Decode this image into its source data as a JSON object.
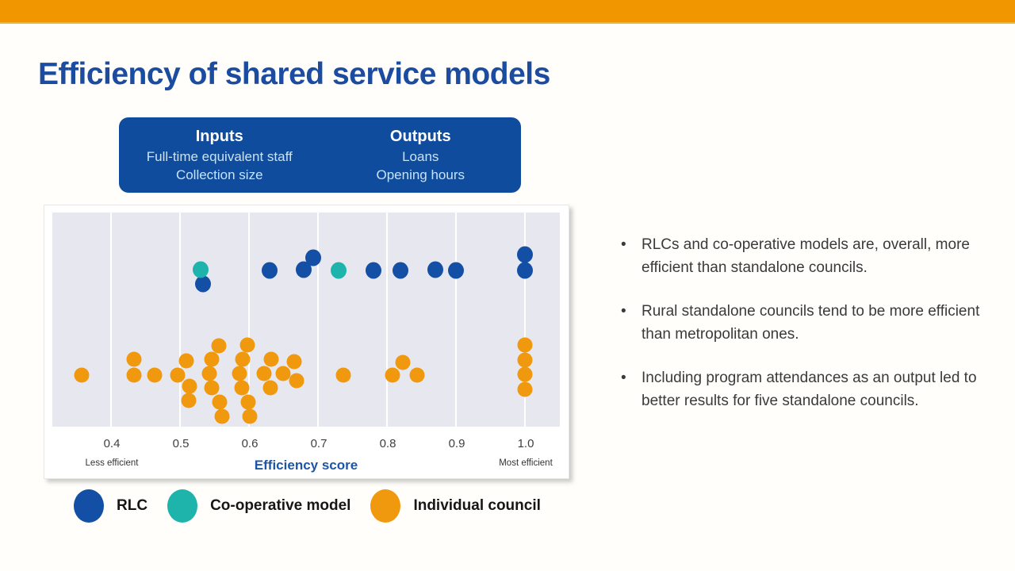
{
  "slide": {
    "title": "Efficiency of shared service models"
  },
  "glyphs": {
    "bullet": "•"
  },
  "colors": {
    "accent_orange": "#F29600",
    "brand_blue": "#1B4CA0",
    "box_blue": "#0F4C9E",
    "plot_bg": "#E7E7EF",
    "axis_blue": "#1D55A8"
  },
  "info_box": {
    "columns": [
      {
        "heading": "Inputs",
        "items": [
          "Full-time equivalent staff",
          "Collection size"
        ]
      },
      {
        "heading": "Outputs",
        "items": [
          "Loans",
          "Opening hours"
        ]
      }
    ]
  },
  "chart_data": {
    "type": "scatter",
    "title": "",
    "xlabel": "Efficiency score",
    "x_ticks": [
      0.4,
      0.5,
      0.6,
      0.7,
      0.8,
      0.9,
      1.0
    ],
    "x_range": [
      0.315,
      1.05
    ],
    "grid": "vertical-white-gridlines",
    "legend_position": "bottom",
    "axis_annotations": {
      "left": "Less efficient",
      "right": "Most efficient"
    },
    "series": [
      {
        "name": "RLC",
        "color": "#134FA5",
        "points": [
          {
            "score": 0.533,
            "y": 90
          },
          {
            "score": 0.63,
            "y": 73
          },
          {
            "score": 0.679,
            "y": 72
          },
          {
            "score": 0.693,
            "y": 57
          },
          {
            "score": 0.78,
            "y": 73
          },
          {
            "score": 0.82,
            "y": 73
          },
          {
            "score": 0.87,
            "y": 72
          },
          {
            "score": 0.9,
            "y": 73
          },
          {
            "score": 1.0,
            "y": 53
          },
          {
            "score": 1.0,
            "y": 73
          }
        ]
      },
      {
        "name": "Co-operative model",
        "color": "#1EB4AB",
        "points": [
          {
            "score": 0.53,
            "y": 72
          },
          {
            "score": 0.73,
            "y": 73
          }
        ]
      },
      {
        "name": "Individual council",
        "color": "#F0990F",
        "points": [
          {
            "score": 0.357,
            "y": 205
          },
          {
            "score": 0.433,
            "y": 185
          },
          {
            "score": 0.433,
            "y": 205
          },
          {
            "score": 0.463,
            "y": 205
          },
          {
            "score": 0.497,
            "y": 205
          },
          {
            "score": 0.509,
            "y": 187
          },
          {
            "score": 0.514,
            "y": 219
          },
          {
            "score": 0.513,
            "y": 237
          },
          {
            "score": 0.556,
            "y": 168
          },
          {
            "score": 0.546,
            "y": 185
          },
          {
            "score": 0.543,
            "y": 203
          },
          {
            "score": 0.546,
            "y": 221
          },
          {
            "score": 0.557,
            "y": 239
          },
          {
            "score": 0.561,
            "y": 257
          },
          {
            "score": 0.598,
            "y": 167
          },
          {
            "score": 0.591,
            "y": 185
          },
          {
            "score": 0.586,
            "y": 203
          },
          {
            "score": 0.59,
            "y": 221
          },
          {
            "score": 0.599,
            "y": 239
          },
          {
            "score": 0.601,
            "y": 257
          },
          {
            "score": 0.632,
            "y": 185
          },
          {
            "score": 0.622,
            "y": 203
          },
          {
            "score": 0.631,
            "y": 221
          },
          {
            "score": 0.649,
            "y": 203
          },
          {
            "score": 0.666,
            "y": 188
          },
          {
            "score": 0.669,
            "y": 212
          },
          {
            "score": 0.737,
            "y": 205
          },
          {
            "score": 0.808,
            "y": 205
          },
          {
            "score": 0.823,
            "y": 189
          },
          {
            "score": 0.844,
            "y": 205
          },
          {
            "score": 1.0,
            "y": 167
          },
          {
            "score": 1.0,
            "y": 186
          },
          {
            "score": 1.0,
            "y": 204
          },
          {
            "score": 1.0,
            "y": 223
          }
        ]
      }
    ]
  },
  "bullets": [
    "RLCs and co-operative models are, overall, more efficient than standalone councils.",
    "Rural standalone councils tend to be more efficient than metropolitan ones.",
    "Including program attendances as an output led to better results for five standalone councils."
  ]
}
